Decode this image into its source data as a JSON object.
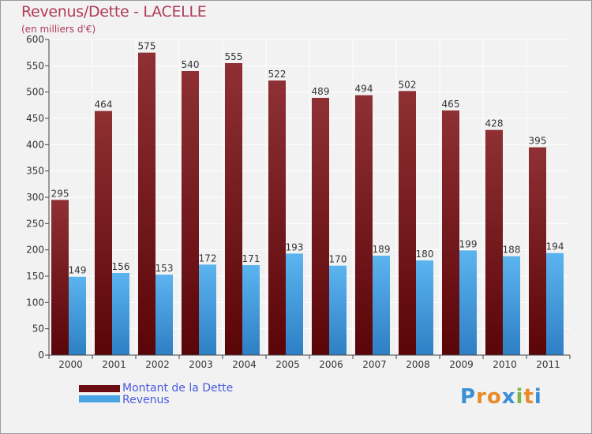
{
  "chart_data": {
    "type": "bar",
    "title": "Revenus/Dette - LACELLE",
    "subtitle": "(en milliers d'€)",
    "categories": [
      "2000",
      "2001",
      "2002",
      "2003",
      "2004",
      "2005",
      "2006",
      "2007",
      "2008",
      "2009",
      "2010",
      "2011"
    ],
    "series": [
      {
        "name": "Montant de la Dette",
        "values": [
          295,
          464,
          575,
          540,
          555,
          522,
          489,
          494,
          502,
          465,
          428,
          395
        ],
        "color": "#7b1f24"
      },
      {
        "name": "Revenus",
        "values": [
          149,
          156,
          153,
          172,
          171,
          193,
          170,
          189,
          180,
          199,
          188,
          194
        ],
        "color": "#4aa3e3"
      }
    ],
    "yticks": [
      0,
      50,
      100,
      150,
      200,
      250,
      300,
      350,
      400,
      450,
      500,
      550,
      600
    ],
    "ylim": [
      0,
      600
    ],
    "grid": true,
    "legend": "bottom-left"
  },
  "branding": {
    "logo_letters": [
      "P",
      "r",
      "o",
      "x",
      "i",
      "t",
      "i"
    ],
    "logo_colors": [
      "#3a8fd6",
      "#e8892b",
      "#e8892b",
      "#3a8fd6",
      "#7ab648",
      "#e8892b",
      "#3a8fd6"
    ]
  }
}
